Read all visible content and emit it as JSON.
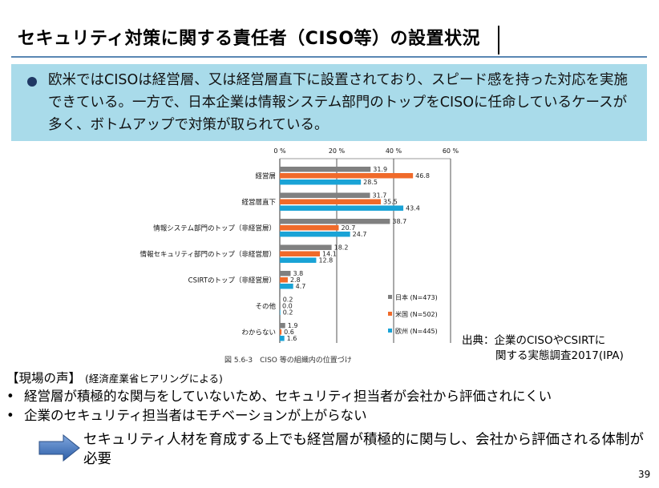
{
  "slide": {
    "title": "セキュリティ対策に関する責任者（CISO等）の設置状況",
    "page_number": "39"
  },
  "summary": {
    "text": "欧米ではCISOは経営層、又は経営層直下に設置されており、スピード感を持った対応を実施できている。一方で、日本企業は情報システム部門のトップをCISOに任命しているケースが多く、ボトムアップで対策が取られている。"
  },
  "chart_data": {
    "type": "bar",
    "orientation": "horizontal",
    "caption": "図 5.6-3　CISO 等の組織内の位置づけ",
    "xlim": [
      0,
      60
    ],
    "x_ticks": [
      "0 %",
      "20 %",
      "40 %",
      "60 %"
    ],
    "categories": [
      "経営層",
      "経営層直下",
      "情報システム部門のトップ（非経営層）",
      "情報セキュリティ部門のトップ（非経営層）",
      "CSIRTのトップ（非経営層）",
      "その他",
      "わからない"
    ],
    "series": [
      {
        "name": "日本 (N=473)",
        "color": "#808080",
        "values": [
          31.9,
          31.7,
          38.7,
          18.2,
          3.8,
          0.2,
          1.9
        ]
      },
      {
        "name": "米国 (N=502)",
        "color": "#f06a2a",
        "values": [
          46.8,
          35.5,
          20.7,
          14.1,
          2.8,
          0.0,
          0.6
        ]
      },
      {
        "name": "欧州 (N=445)",
        "color": "#1aa3d6",
        "values": [
          28.5,
          43.4,
          24.7,
          12.8,
          4.7,
          0.2,
          1.6
        ]
      }
    ],
    "value_labels": [
      [
        "31.9",
        "31.7",
        "38.7",
        "18.2",
        "3.8",
        "0.2",
        "1.9"
      ],
      [
        "46.8",
        "35.5",
        "20.7",
        "14.1",
        "2.8",
        "0.0",
        "0.6"
      ],
      [
        "28.5",
        "43.4",
        "24.7",
        "12.8",
        "4.7",
        "0.2",
        "1.6"
      ]
    ],
    "legend_position": "bottom-right"
  },
  "source": {
    "line1": "出典：企業のCISOやCSIRTに",
    "line2": "関する実態調査2017(IPA)"
  },
  "voices": {
    "heading": "【現場の声】",
    "heading_note": "(経済産業省ヒアリングによる)",
    "bullet": "•",
    "items": [
      "経営層が積極的な関与をしていないため、セキュリティ担当者が会社から評価されにくい",
      "企業のセキュリティ担当者はモチベーションが上がらない"
    ]
  },
  "conclusion": {
    "text": "セキュリティ人材を育成する上でも経営層が積極的に関与し、会社から評価される体制が必要"
  }
}
